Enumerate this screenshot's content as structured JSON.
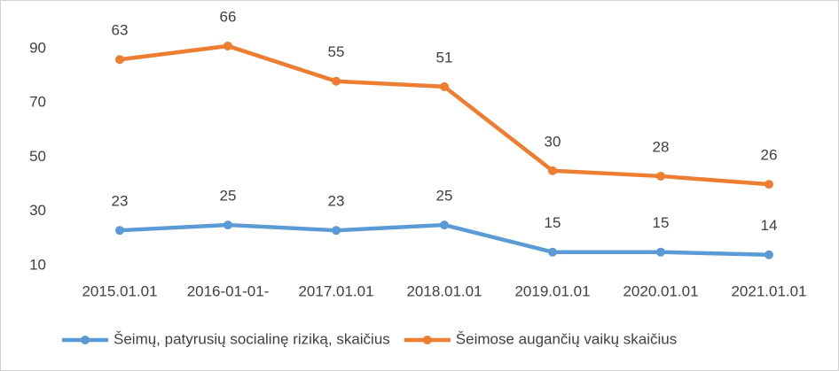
{
  "chart_data": {
    "type": "line",
    "stacked": true,
    "categories": [
      "2015.01.01",
      "2016-01-01-",
      "2017.01.01",
      "2018.01.01",
      "2019.01.01",
      "2020.01.01",
      "2021.01.01"
    ],
    "series": [
      {
        "name": "Šeimų, patyrusių socialinę riziką, skaičius",
        "color": "#5b9bd5",
        "values": [
          23,
          25,
          23,
          25,
          15,
          15,
          14
        ]
      },
      {
        "name": "Šeimose augančių vaikų skaičius",
        "color": "#ed7d31",
        "values": [
          63,
          66,
          55,
          51,
          30,
          28,
          26
        ]
      }
    ],
    "ylim": [
      10,
      100
    ],
    "yticks": [
      10,
      30,
      50,
      70,
      90
    ],
    "grid": false,
    "legend": "bottom"
  }
}
